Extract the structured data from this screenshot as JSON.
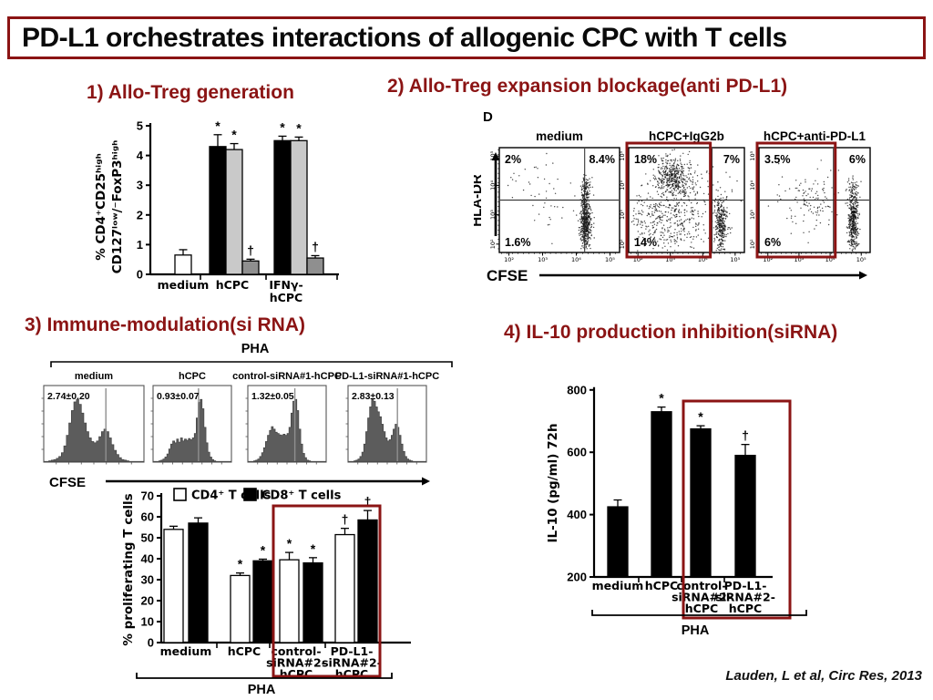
{
  "slide": {
    "title": "PD-L1 orchestrates interactions of allogenic CPC with T cells",
    "citation": "Lauden, L et al, Circ Res, 2013",
    "accent_color": "#8b1414",
    "background_color": "#ffffff"
  },
  "sections": {
    "s1": {
      "heading": "1) Allo-Treg generation"
    },
    "s2": {
      "heading": "2) Allo-Treg expansion blockage(anti PD-L1)"
    },
    "s3": {
      "heading": "3) Immune-modulation(si RNA)"
    },
    "s4": {
      "heading": "4) IL-10 production inhibition(siRNA)"
    }
  },
  "chart_data": [
    {
      "id": "allo-treg-generation",
      "type": "bar",
      "ylabel_lines": [
        "% CD4⁺CD25ʰⁱᵍʰ",
        "CD127ˡᵒʷ/⁻FoxP3ʰⁱᵍʰ"
      ],
      "ylim": [
        0,
        5
      ],
      "yticks": [
        0,
        1,
        2,
        3,
        4,
        5
      ],
      "groups": [
        {
          "label_lines": [
            "medium"
          ],
          "bars": [
            {
              "value": 0.65,
              "err": 0.18,
              "color": "#ffffff"
            }
          ]
        },
        {
          "label_lines": [
            "hCPC"
          ],
          "bars": [
            {
              "value": 4.3,
              "err": 0.4,
              "color": "#000000",
              "mark": "*"
            },
            {
              "value": 4.2,
              "err": 0.2,
              "color": "#c9c9c9",
              "mark": "*"
            },
            {
              "value": 0.45,
              "err": 0.06,
              "color": "#8f8f8f",
              "mark": "†"
            }
          ]
        },
        {
          "label_lines": [
            "IFNγ-",
            "hCPC"
          ],
          "bars": [
            {
              "value": 4.5,
              "err": 0.15,
              "color": "#000000",
              "mark": "*"
            },
            {
              "value": 4.5,
              "err": 0.12,
              "color": "#c9c9c9",
              "mark": "*"
            },
            {
              "value": 0.55,
              "err": 0.08,
              "color": "#8f8f8f",
              "mark": "†"
            }
          ]
        }
      ]
    },
    {
      "id": "treg-expansion-flow",
      "type": "scatter",
      "panel_letter": "D",
      "xlabel": "CFSE",
      "ylabel": "HLA-DR",
      "axis_ticks": [
        "10²",
        "10³",
        "10⁴",
        "10⁵"
      ],
      "plots": [
        {
          "label": "medium",
          "quadrant_pcts": {
            "top_left": "2%",
            "top_right": "8.4%",
            "bottom_left": "1.6%"
          },
          "vline": 0.71,
          "hline": 0.5,
          "highlighted": false,
          "clusters": [
            {
              "cx": 0.72,
              "cy": 0.3,
              "sx": 0.022,
              "sy": 0.14,
              "n": 520
            },
            {
              "cx": 0.72,
              "cy": 0.6,
              "sx": 0.028,
              "sy": 0.07,
              "n": 70
            },
            {
              "cx": 0.38,
              "cy": 0.55,
              "sx": 0.2,
              "sy": 0.22,
              "n": 55
            }
          ]
        },
        {
          "label": "hCPC+IgG2b",
          "quadrant_pcts": {
            "top_left": "18%",
            "top_right": "7%",
            "bottom_left": "14%"
          },
          "vline": 0.72,
          "hline": 0.5,
          "highlighted": true,
          "highlight_to": 0.69,
          "clusters": [
            {
              "cx": 0.38,
              "cy": 0.72,
              "sx": 0.08,
              "sy": 0.09,
              "n": 420
            },
            {
              "cx": 0.33,
              "cy": 0.3,
              "sx": 0.18,
              "sy": 0.16,
              "n": 380
            },
            {
              "cx": 0.8,
              "cy": 0.28,
              "sx": 0.026,
              "sy": 0.13,
              "n": 330
            },
            {
              "cx": 0.55,
              "cy": 0.55,
              "sx": 0.22,
              "sy": 0.24,
              "n": 120
            }
          ]
        },
        {
          "label": "hCPC+anti-PD-L1",
          "quadrant_pcts": {
            "top_left": "3.5%",
            "top_right": "6%",
            "bottom_left": "6%"
          },
          "vline": 0.67,
          "hline": 0.5,
          "highlighted": true,
          "highlight_to": 0.67,
          "clusters": [
            {
              "cx": 0.45,
              "cy": 0.52,
              "sx": 0.14,
              "sy": 0.18,
              "n": 120
            },
            {
              "cx": 0.85,
              "cy": 0.3,
              "sx": 0.022,
              "sy": 0.14,
              "n": 430
            },
            {
              "cx": 0.85,
              "cy": 0.6,
              "sx": 0.03,
              "sy": 0.08,
              "n": 60
            }
          ]
        }
      ]
    },
    {
      "id": "cfse-histograms",
      "type": "histogram",
      "overall_label": "PHA",
      "xlabel": "CFSE",
      "plots": [
        {
          "label": "medium",
          "value": "2.74±0.20",
          "marker": 0.62,
          "bins": [
            0,
            0,
            0.01,
            0.02,
            0.03,
            0.05,
            0.08,
            0.14,
            0.25,
            0.42,
            0.62,
            0.82,
            0.96,
            1.0,
            0.92,
            0.78,
            0.62,
            0.48,
            0.38,
            0.32,
            0.3,
            0.33,
            0.4,
            0.48,
            0.52,
            0.48,
            0.38,
            0.27,
            0.18,
            0.11,
            0.06,
            0.03,
            0.02,
            0.01,
            0,
            0,
            0,
            0,
            0,
            0
          ]
        },
        {
          "label": "hCPC",
          "value": "0.93±0.07",
          "marker": 0.58,
          "bins": [
            0,
            0,
            0,
            0.01,
            0.02,
            0.04,
            0.07,
            0.12,
            0.2,
            0.28,
            0.33,
            0.3,
            0.36,
            0.31,
            0.38,
            0.33,
            0.36,
            0.34,
            0.37,
            0.35,
            0.38,
            0.45,
            0.7,
            0.95,
            1.0,
            0.85,
            0.55,
            0.3,
            0.15,
            0.07,
            0.03,
            0.01,
            0,
            0,
            0,
            0,
            0,
            0,
            0,
            0
          ]
        },
        {
          "label": "control-siRNA#1-hCPC",
          "value": "1.32±0.05",
          "marker": 0.6,
          "bins": [
            0,
            0,
            0,
            0.01,
            0.02,
            0.04,
            0.08,
            0.14,
            0.22,
            0.32,
            0.42,
            0.5,
            0.56,
            0.52,
            0.47,
            0.45,
            0.43,
            0.42,
            0.44,
            0.42,
            0.45,
            0.55,
            0.78,
            0.97,
            1.0,
            0.82,
            0.52,
            0.28,
            0.13,
            0.06,
            0.02,
            0.01,
            0,
            0,
            0,
            0,
            0,
            0,
            0,
            0
          ]
        },
        {
          "label": "PD-L1-siRNA#1-hCPC",
          "value": "2.83±0.13",
          "marker": 0.63,
          "bins": [
            0,
            0,
            0,
            0.01,
            0.02,
            0.04,
            0.08,
            0.15,
            0.28,
            0.48,
            0.7,
            0.88,
            1.0,
            0.97,
            0.88,
            0.8,
            0.72,
            0.6,
            0.48,
            0.38,
            0.33,
            0.35,
            0.42,
            0.52,
            0.6,
            0.55,
            0.42,
            0.28,
            0.16,
            0.08,
            0.04,
            0.02,
            0.01,
            0,
            0,
            0,
            0,
            0,
            0,
            0
          ]
        }
      ]
    },
    {
      "id": "proliferating-t-cells",
      "type": "bar",
      "ylabel": "% proliferating T cells",
      "ylim": [
        0,
        70
      ],
      "yticks": [
        0,
        10,
        20,
        30,
        40,
        50,
        60,
        70
      ],
      "legend": [
        {
          "label": "CD4⁺ T cells",
          "color": "#ffffff"
        },
        {
          "label": "CD8⁺ T cells",
          "color": "#000000"
        }
      ],
      "bracket_label": "PHA",
      "groups": [
        {
          "label_lines": [
            "medium"
          ],
          "bars": [
            {
              "value": 54,
              "err": 1.5,
              "color": "#ffffff"
            },
            {
              "value": 57,
              "err": 2.5,
              "color": "#000000"
            }
          ]
        },
        {
          "label_lines": [
            "hCPC"
          ],
          "bars": [
            {
              "value": 32,
              "err": 1.2,
              "color": "#ffffff",
              "mark": "*"
            },
            {
              "value": 39,
              "err": 0.8,
              "color": "#000000",
              "mark": "*"
            }
          ]
        },
        {
          "label_lines": [
            "control-",
            "siRNA#2-",
            "hCPC"
          ],
          "bars": [
            {
              "value": 39.5,
              "err": 3.5,
              "color": "#ffffff",
              "mark": "*"
            },
            {
              "value": 38,
              "err": 2.5,
              "color": "#000000",
              "mark": "*"
            }
          ]
        },
        {
          "label_lines": [
            "PD-L1-",
            "siRNA#2-",
            "hCPC"
          ],
          "bars": [
            {
              "value": 51.5,
              "err": 3,
              "color": "#ffffff",
              "mark": "†"
            },
            {
              "value": 58.5,
              "err": 4.5,
              "color": "#000000",
              "mark": "†"
            }
          ]
        }
      ]
    },
    {
      "id": "il10-production",
      "type": "bar",
      "ylabel": "IL-10 (pg/ml) 72h",
      "ylim": [
        200,
        800
      ],
      "yticks": [
        200,
        400,
        600,
        800
      ],
      "bracket_label": "PHA",
      "groups": [
        {
          "label_lines": [
            "medium"
          ],
          "bars": [
            {
              "value": 425,
              "err": 22,
              "color": "#000000"
            }
          ]
        },
        {
          "label_lines": [
            "hCPC"
          ],
          "bars": [
            {
              "value": 730,
              "err": 15,
              "color": "#000000",
              "mark": "*"
            }
          ]
        },
        {
          "label_lines": [
            "control-",
            "siRNA#2-",
            "hCPC"
          ],
          "bars": [
            {
              "value": 675,
              "err": 10,
              "color": "#000000",
              "mark": "*"
            }
          ]
        },
        {
          "label_lines": [
            "PD-L1-",
            "siRNA#2-",
            "hCPC"
          ],
          "bars": [
            {
              "value": 590,
              "err": 35,
              "color": "#000000",
              "mark": "†"
            }
          ]
        }
      ]
    }
  ]
}
